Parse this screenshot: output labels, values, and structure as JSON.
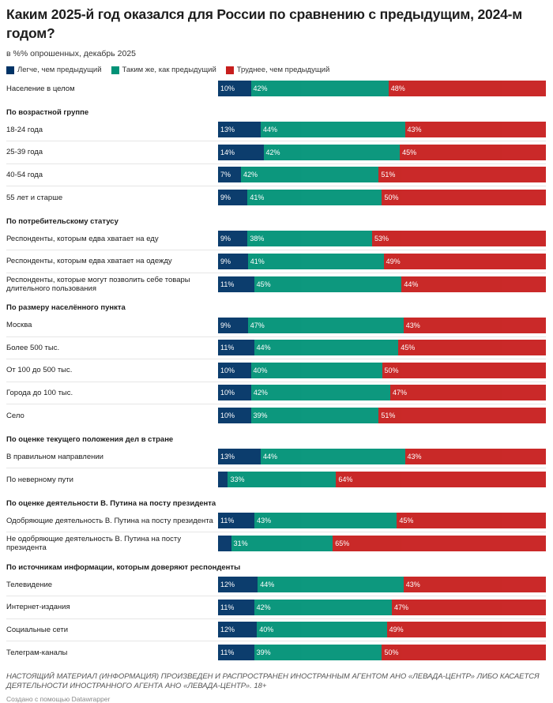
{
  "chart_data": {
    "type": "bar",
    "stacked": true,
    "orientation": "horizontal",
    "title": "Каким 2025-й год оказался для России по сравнению с предыдущим, 2024-м годом?",
    "subtitle": "в %% опрошенных, декабрь 2025",
    "legend": [
      {
        "name": "Легче, чем предыдущий",
        "color": "#003366"
      },
      {
        "name": "Таким  же, как предыдущий",
        "color": "#009277"
      },
      {
        "name": "Труднее, чем предыдущий",
        "color": "#c71e1d"
      }
    ],
    "groups": [
      {
        "title": "",
        "rows": [
          {
            "label": "Население в целом",
            "values": [
              10,
              42,
              48
            ]
          }
        ]
      },
      {
        "title": "По возрастной группе",
        "rows": [
          {
            "label": "18-24 года",
            "values": [
              13,
              44,
              43
            ]
          },
          {
            "label": "25-39 года",
            "values": [
              14,
              42,
              45
            ]
          },
          {
            "label": "40-54 года",
            "values": [
              7,
              42,
              51
            ]
          },
          {
            "label": "55 лет и старше",
            "values": [
              9,
              41,
              50
            ]
          }
        ]
      },
      {
        "title": "По потребительскому статусу",
        "rows": [
          {
            "label": "Респонденты, которым едва хватает на еду",
            "values": [
              9,
              38,
              53
            ]
          },
          {
            "label": "Респонденты, которым едва хватает на одежду",
            "values": [
              9,
              41,
              49
            ]
          },
          {
            "label": "Респонденты, которые могут позволить себе товары длительного пользования",
            "values": [
              11,
              45,
              44
            ]
          }
        ]
      },
      {
        "title": "По размеру населённого пункта",
        "rows": [
          {
            "label": "Москва",
            "values": [
              9,
              47,
              43
            ]
          },
          {
            "label": "Более 500 тыс.",
            "values": [
              11,
              44,
              45
            ]
          },
          {
            "label": "От 100 до 500 тыс.",
            "values": [
              10,
              40,
              50
            ]
          },
          {
            "label": "Города до 100 тыс.",
            "values": [
              10,
              42,
              47
            ]
          },
          {
            "label": "Село",
            "values": [
              10,
              39,
              51
            ]
          }
        ]
      },
      {
        "title": "По оценке текущего положения дел в стране",
        "rows": [
          {
            "label": "В правильном направлении",
            "values": [
              13,
              44,
              43
            ]
          },
          {
            "label": "По неверному пути",
            "values": [
              3,
              33,
              64
            ],
            "hidden_labels": [
              0
            ]
          }
        ]
      },
      {
        "title": "По оценке деятельности В. Путина на посту президента",
        "rows": [
          {
            "label": "Одобряющие деятельность В. Путина на посту президента",
            "values": [
              11,
              43,
              45
            ]
          },
          {
            "label": "Не одобряющие деятельность В. Путина на посту президента",
            "values": [
              4,
              31,
              65
            ],
            "hidden_labels": [
              0
            ]
          }
        ]
      },
      {
        "title": "По источникам информации, которым доверяют респонденты",
        "rows": [
          {
            "label": "Телевидение",
            "values": [
              12,
              44,
              43
            ]
          },
          {
            "label": "Интернет-издания",
            "values": [
              11,
              42,
              47
            ]
          },
          {
            "label": "Социальные сети",
            "values": [
              12,
              40,
              49
            ]
          },
          {
            "label": "Телеграм-каналы",
            "values": [
              11,
              39,
              50
            ]
          }
        ]
      }
    ]
  },
  "footer": {
    "notice": "НАСТОЯЩИЙ МАТЕРИАЛ (ИНФОРМАЦИЯ) ПРОИЗВЕДЕН И РАСПРОСТРАНЕН ИНОСТРАННЫМ АГЕНТОМ АНО «ЛЕВАДА-ЦЕНТР» ЛИБО КАСАЕТСЯ ДЕЯТЕЛЬНОСТИ ИНОСТРАННОГО АГЕНТА АНО «ЛЕВАДА-ЦЕНТР». 18+",
    "credit": "Создано с помощью Datawrapper"
  }
}
